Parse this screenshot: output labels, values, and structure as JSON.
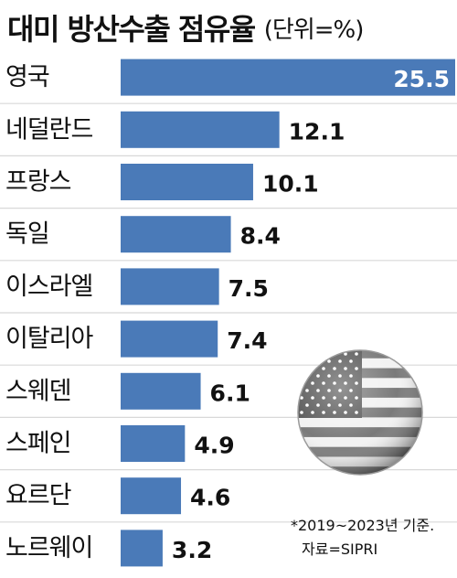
{
  "title": {
    "main": "대미 방산수출 점유율",
    "unit": "(단위=%)"
  },
  "chart_data": {
    "type": "bar",
    "orientation": "horizontal",
    "title": "대미 방산수출 점유율",
    "unit": "(단위=%)",
    "categories": [
      "영국",
      "네덜란드",
      "프랑스",
      "독일",
      "이스라엘",
      "이탈리아",
      "스웨덴",
      "스페인",
      "요르단",
      "노르웨이"
    ],
    "values": [
      25.5,
      12.1,
      10.1,
      8.4,
      7.5,
      7.4,
      6.1,
      4.9,
      4.6,
      3.2
    ],
    "value_labels": [
      "25.5",
      "12.1",
      "10.1",
      "8.4",
      "7.5",
      "7.4",
      "6.1",
      "4.9",
      "4.6",
      "3.2"
    ],
    "xlim": [
      0,
      25.5
    ],
    "bar_color": "#4a7ab8",
    "row_separator_color": "#d8d8d8",
    "grid": false,
    "legend": "none"
  },
  "notes": {
    "line1": "*2019~2023년 기준.",
    "line2": "자료=SIPRI"
  },
  "decoration": {
    "icon": "us-flag-sphere-icon"
  }
}
